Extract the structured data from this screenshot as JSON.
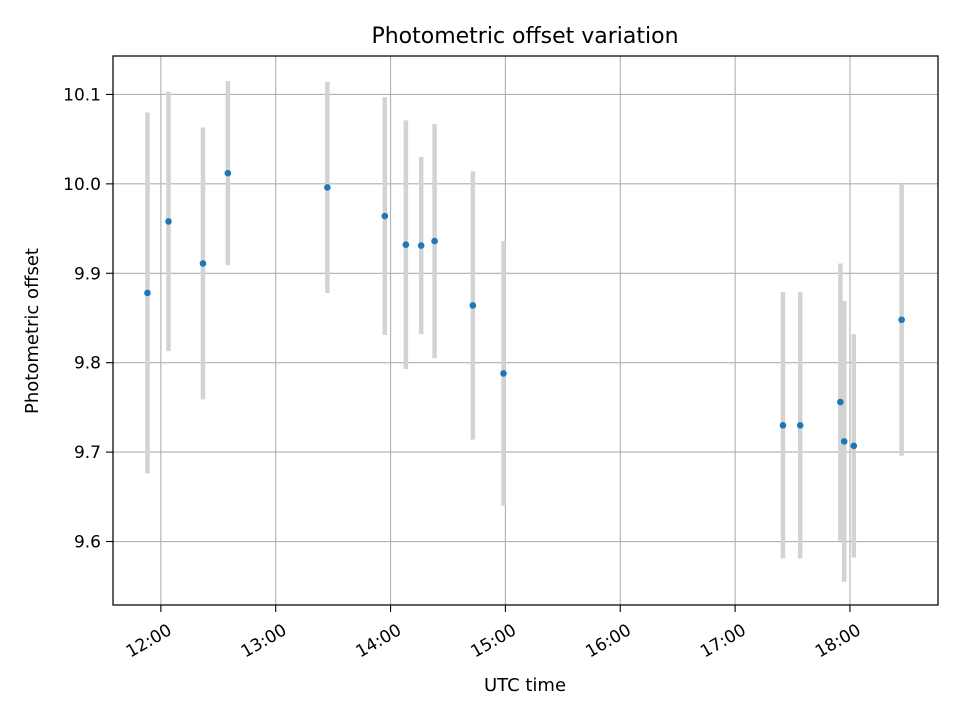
{
  "chart_data": {
    "type": "scatter",
    "title": "Photometric offset variation",
    "xlabel": "UTC time",
    "ylabel": "Photometric offset",
    "x_tick_labels": [
      "12:00",
      "13:00",
      "14:00",
      "15:00",
      "16:00",
      "17:00",
      "18:00"
    ],
    "x_ticks": [
      "12:00",
      "13:00",
      "14:00",
      "15:00",
      "16:00",
      "17:00",
      "18:00"
    ],
    "xlim": [
      "11:35",
      "18:46"
    ],
    "y_ticks": [
      9.6,
      9.7,
      9.8,
      9.9,
      10.0,
      10.1
    ],
    "y_tick_labels": [
      "9.6",
      "9.7",
      "9.8",
      "9.9",
      "10.0",
      "10.1"
    ],
    "ylim": [
      9.529,
      10.143
    ],
    "grid": true,
    "error_bars": true,
    "colors": {
      "points": "#1f77b4",
      "error_bars": "#d3d3d3",
      "grid": "#b0b0b0"
    },
    "points": [
      {
        "t": "11:53",
        "y": 9.878,
        "err": 0.202
      },
      {
        "t": "12:04",
        "y": 9.958,
        "err": 0.145
      },
      {
        "t": "12:22",
        "y": 9.911,
        "err": 0.152
      },
      {
        "t": "12:35",
        "y": 10.012,
        "err": 0.103
      },
      {
        "t": "13:27",
        "y": 9.996,
        "err": 0.118
      },
      {
        "t": "13:57",
        "y": 9.964,
        "err": 0.133
      },
      {
        "t": "14:08",
        "y": 9.932,
        "err": 0.139
      },
      {
        "t": "14:16",
        "y": 9.931,
        "err": 0.099
      },
      {
        "t": "14:23",
        "y": 9.936,
        "err": 0.131
      },
      {
        "t": "14:43",
        "y": 9.864,
        "err": 0.15
      },
      {
        "t": "14:59",
        "y": 9.788,
        "err": 0.148
      },
      {
        "t": "17:25",
        "y": 9.73,
        "err": 0.149
      },
      {
        "t": "17:34",
        "y": 9.73,
        "err": 0.149
      },
      {
        "t": "17:55",
        "y": 9.756,
        "err": 0.155
      },
      {
        "t": "17:57",
        "y": 9.712,
        "err": 0.157
      },
      {
        "t": "18:02",
        "y": 9.707,
        "err": 0.125
      },
      {
        "t": "18:27",
        "y": 9.848,
        "err": 0.152
      }
    ]
  }
}
